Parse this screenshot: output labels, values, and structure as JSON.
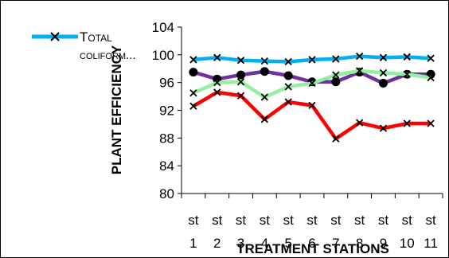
{
  "chart_data": {
    "type": "line",
    "title": "",
    "xlabel": "TREATMENT STATIONS",
    "ylabel": "PLANT EFFICIENCY",
    "ylim": [
      80,
      104
    ],
    "yticks": [
      "80",
      "84",
      "88",
      "92",
      "96",
      "100",
      "104"
    ],
    "categories": [
      [
        "st",
        "1"
      ],
      [
        "st",
        "2"
      ],
      [
        "st",
        "3"
      ],
      [
        "st",
        "4"
      ],
      [
        "st",
        "5"
      ],
      [
        "st",
        "6"
      ],
      [
        "st",
        "7"
      ],
      [
        "st",
        "8"
      ],
      [
        "st",
        "9"
      ],
      [
        "st",
        "10"
      ],
      [
        "st",
        "11"
      ]
    ],
    "grid": false,
    "legend_position": "top-left",
    "legend": {
      "label_line1": "Total",
      "label_line2": "coliform..."
    },
    "series": [
      {
        "name": "Total coliform...",
        "color": "#00b0f0",
        "marker": "x",
        "values": [
          99.3,
          99.6,
          99.2,
          99.1,
          99.0,
          99.3,
          99.4,
          99.8,
          99.6,
          99.7,
          99.5
        ]
      },
      {
        "color": "#7030a0",
        "marker": "circle",
        "values": [
          97.5,
          96.5,
          97.1,
          97.6,
          97.0,
          96.1,
          96.1,
          97.5,
          95.9,
          97.2,
          97.2
        ]
      },
      {
        "color": "#92f0a0",
        "marker": "x",
        "values": [
          94.5,
          96.0,
          96.1,
          93.9,
          95.4,
          95.9,
          97.1,
          97.7,
          97.4,
          97.2,
          96.7
        ]
      },
      {
        "color": "#ff0000",
        "marker": "x",
        "values": [
          92.6,
          94.6,
          94.1,
          90.7,
          93.2,
          92.7,
          87.9,
          90.2,
          89.4,
          90.1,
          90.1
        ]
      }
    ]
  }
}
